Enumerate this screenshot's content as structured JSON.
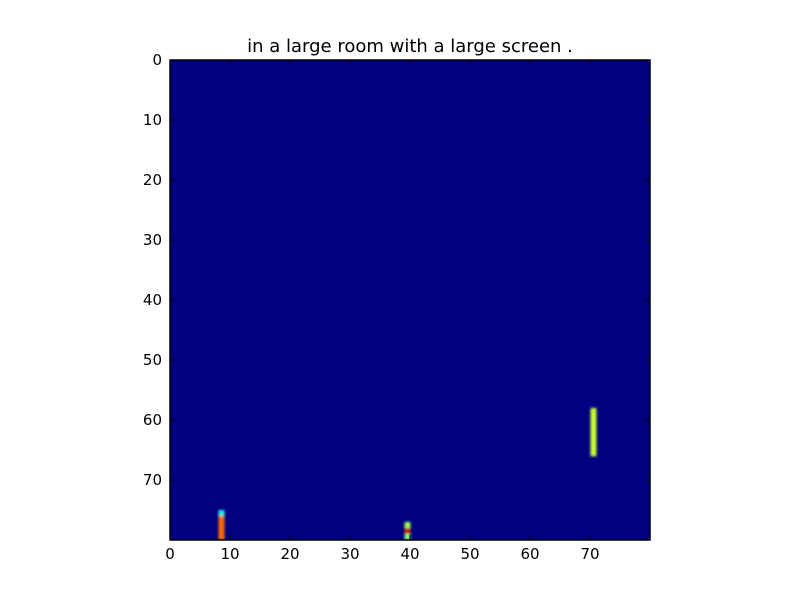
{
  "chart_data": {
    "type": "heatmap",
    "title": "in a large room with a large screen .",
    "xlabel": "",
    "ylabel": "",
    "xlim": [
      0,
      80
    ],
    "ylim": [
      80,
      0
    ],
    "x_ticks": [
      0,
      10,
      20,
      30,
      40,
      50,
      60,
      70
    ],
    "y_ticks": [
      0,
      10,
      20,
      30,
      40,
      50,
      60,
      70
    ],
    "x_tick_labels": [
      "0",
      "10",
      "20",
      "30",
      "40",
      "50",
      "60",
      "70"
    ],
    "y_tick_labels": [
      "0",
      "10",
      "20",
      "30",
      "40",
      "50",
      "60",
      "70"
    ],
    "grid": false,
    "colormap": "jet",
    "background": {
      "value": 0.0,
      "color": "#000080"
    },
    "cells": [
      {
        "x": 8,
        "y": 75,
        "value": 0.35,
        "color": "#29f0e0"
      },
      {
        "x": 8,
        "y": 76,
        "value": 0.8,
        "color": "#ff6a00"
      },
      {
        "x": 8,
        "y": 77,
        "value": 0.8,
        "color": "#ff6a00"
      },
      {
        "x": 8,
        "y": 78,
        "value": 0.8,
        "color": "#ff6a00"
      },
      {
        "x": 8,
        "y": 79,
        "value": 0.8,
        "color": "#ff6a00"
      },
      {
        "x": 39,
        "y": 77,
        "value": 0.55,
        "color": "#9cff5a"
      },
      {
        "x": 39,
        "y": 78,
        "value": 0.9,
        "color": "#c81400"
      },
      {
        "x": 39,
        "y": 79,
        "value": 0.5,
        "color": "#7fff7a"
      },
      {
        "x": 70,
        "y": 58,
        "value": 0.65,
        "color": "#c8ff32"
      },
      {
        "x": 70,
        "y": 59,
        "value": 0.65,
        "color": "#c8ff32"
      },
      {
        "x": 70,
        "y": 60,
        "value": 0.65,
        "color": "#c8ff32"
      },
      {
        "x": 70,
        "y": 61,
        "value": 0.65,
        "color": "#c8ff32"
      },
      {
        "x": 70,
        "y": 62,
        "value": 0.65,
        "color": "#c8ff32"
      },
      {
        "x": 70,
        "y": 63,
        "value": 0.65,
        "color": "#c8ff32"
      },
      {
        "x": 70,
        "y": 64,
        "value": 0.65,
        "color": "#c8ff32"
      },
      {
        "x": 70,
        "y": 65,
        "value": 0.65,
        "color": "#c8ff32"
      }
    ]
  }
}
